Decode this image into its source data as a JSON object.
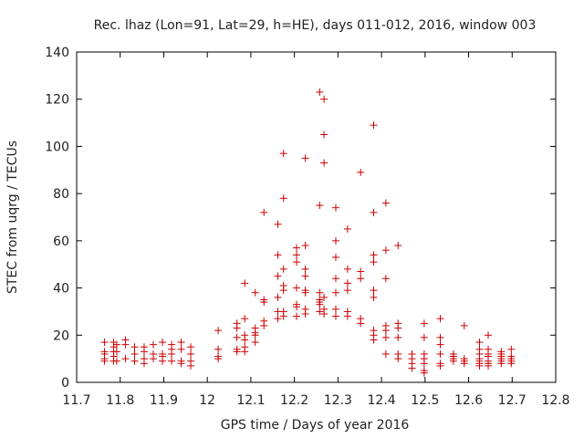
{
  "chart_data": {
    "type": "scatter",
    "title": "Rec. lhaz (Lon=91, Lat=29, h=HE), days 011-012, 2016, window 003",
    "xlabel": "GPS time / Days of year 2016",
    "ylabel": "STEC from uqrg / TECUs",
    "xlim": [
      11.7,
      12.8
    ],
    "ylim": [
      0,
      140
    ],
    "xticks": [
      "11.7",
      "11.8",
      "11.9",
      "12",
      "12.1",
      "12.2",
      "12.3",
      "12.4",
      "12.5",
      "12.6",
      "12.7",
      "12.8"
    ],
    "yticks": [
      "0",
      "20",
      "40",
      "60",
      "80",
      "100",
      "120",
      "140"
    ],
    "grid": false,
    "marker": "+",
    "color": "#cc0000",
    "points": [
      [
        11.764,
        17
      ],
      [
        11.764,
        13
      ],
      [
        11.764,
        12
      ],
      [
        11.764,
        10
      ],
      [
        11.764,
        9
      ],
      [
        11.785,
        17
      ],
      [
        11.785,
        15
      ],
      [
        11.785,
        13
      ],
      [
        11.785,
        11
      ],
      [
        11.785,
        9
      ],
      [
        11.792,
        16
      ],
      [
        11.792,
        13
      ],
      [
        11.792,
        9
      ],
      [
        11.812,
        18
      ],
      [
        11.812,
        16
      ],
      [
        11.812,
        10
      ],
      [
        11.833,
        15
      ],
      [
        11.833,
        12
      ],
      [
        11.833,
        9
      ],
      [
        11.855,
        15
      ],
      [
        11.855,
        13
      ],
      [
        11.855,
        10
      ],
      [
        11.855,
        8
      ],
      [
        11.876,
        16
      ],
      [
        11.876,
        12
      ],
      [
        11.876,
        10
      ],
      [
        11.897,
        17
      ],
      [
        11.897,
        12
      ],
      [
        11.897,
        11
      ],
      [
        11.897,
        9
      ],
      [
        11.918,
        16
      ],
      [
        11.918,
        14
      ],
      [
        11.918,
        12
      ],
      [
        11.918,
        9
      ],
      [
        11.94,
        17
      ],
      [
        11.94,
        14
      ],
      [
        11.94,
        9
      ],
      [
        11.94,
        8
      ],
      [
        11.962,
        15
      ],
      [
        11.962,
        12
      ],
      [
        11.962,
        9
      ],
      [
        11.962,
        7
      ],
      [
        12.025,
        22
      ],
      [
        12.025,
        14
      ],
      [
        12.025,
        11
      ],
      [
        12.025,
        10
      ],
      [
        12.068,
        25
      ],
      [
        12.068,
        23
      ],
      [
        12.068,
        19
      ],
      [
        12.068,
        14
      ],
      [
        12.068,
        13
      ],
      [
        12.086,
        42
      ],
      [
        12.086,
        27
      ],
      [
        12.086,
        20
      ],
      [
        12.086,
        18
      ],
      [
        12.086,
        15
      ],
      [
        12.086,
        13
      ],
      [
        12.11,
        38
      ],
      [
        12.11,
        23
      ],
      [
        12.11,
        21
      ],
      [
        12.11,
        20
      ],
      [
        12.11,
        17
      ],
      [
        12.13,
        72
      ],
      [
        12.13,
        35
      ],
      [
        12.13,
        34
      ],
      [
        12.13,
        26
      ],
      [
        12.13,
        24
      ],
      [
        12.162,
        67
      ],
      [
        12.162,
        54
      ],
      [
        12.162,
        45
      ],
      [
        12.162,
        36
      ],
      [
        12.162,
        30
      ],
      [
        12.162,
        27
      ],
      [
        12.175,
        97
      ],
      [
        12.175,
        78
      ],
      [
        12.175,
        48
      ],
      [
        12.175,
        41
      ],
      [
        12.175,
        39
      ],
      [
        12.175,
        30
      ],
      [
        12.175,
        28
      ],
      [
        12.205,
        57
      ],
      [
        12.205,
        54
      ],
      [
        12.205,
        51
      ],
      [
        12.205,
        40
      ],
      [
        12.205,
        33
      ],
      [
        12.205,
        32
      ],
      [
        12.205,
        28
      ],
      [
        12.225,
        95
      ],
      [
        12.225,
        58
      ],
      [
        12.225,
        48
      ],
      [
        12.225,
        45
      ],
      [
        12.225,
        39
      ],
      [
        12.225,
        38
      ],
      [
        12.225,
        31
      ],
      [
        12.225,
        29
      ],
      [
        12.258,
        123
      ],
      [
        12.258,
        75
      ],
      [
        12.258,
        38
      ],
      [
        12.258,
        35
      ],
      [
        12.258,
        34
      ],
      [
        12.258,
        33
      ],
      [
        12.258,
        30
      ],
      [
        12.268,
        120
      ],
      [
        12.268,
        105
      ],
      [
        12.268,
        93
      ],
      [
        12.268,
        36
      ],
      [
        12.268,
        31
      ],
      [
        12.268,
        29
      ],
      [
        12.295,
        74
      ],
      [
        12.295,
        60
      ],
      [
        12.295,
        53
      ],
      [
        12.295,
        44
      ],
      [
        12.295,
        38
      ],
      [
        12.295,
        31
      ],
      [
        12.295,
        28
      ],
      [
        12.322,
        65
      ],
      [
        12.322,
        48
      ],
      [
        12.322,
        42
      ],
      [
        12.322,
        39
      ],
      [
        12.322,
        30
      ],
      [
        12.322,
        28
      ],
      [
        12.352,
        89
      ],
      [
        12.352,
        47
      ],
      [
        12.352,
        44
      ],
      [
        12.352,
        27
      ],
      [
        12.352,
        25
      ],
      [
        12.382,
        109
      ],
      [
        12.382,
        72
      ],
      [
        12.382,
        54
      ],
      [
        12.382,
        51
      ],
      [
        12.382,
        39
      ],
      [
        12.382,
        36
      ],
      [
        12.382,
        22
      ],
      [
        12.382,
        20
      ],
      [
        12.382,
        18
      ],
      [
        12.41,
        76
      ],
      [
        12.41,
        56
      ],
      [
        12.41,
        44
      ],
      [
        12.41,
        24
      ],
      [
        12.41,
        22
      ],
      [
        12.41,
        19
      ],
      [
        12.41,
        12
      ],
      [
        12.438,
        58
      ],
      [
        12.438,
        25
      ],
      [
        12.438,
        23
      ],
      [
        12.438,
        19
      ],
      [
        12.438,
        12
      ],
      [
        12.438,
        10
      ],
      [
        12.47,
        12
      ],
      [
        12.47,
        10
      ],
      [
        12.47,
        8
      ],
      [
        12.47,
        6
      ],
      [
        12.498,
        25
      ],
      [
        12.498,
        19
      ],
      [
        12.498,
        12
      ],
      [
        12.498,
        10
      ],
      [
        12.498,
        8
      ],
      [
        12.498,
        5
      ],
      [
        12.498,
        4
      ],
      [
        12.535,
        27
      ],
      [
        12.535,
        19
      ],
      [
        12.535,
        16
      ],
      [
        12.535,
        12
      ],
      [
        12.535,
        8
      ],
      [
        12.535,
        7
      ],
      [
        12.565,
        12
      ],
      [
        12.565,
        11
      ],
      [
        12.565,
        10
      ],
      [
        12.565,
        9
      ],
      [
        12.59,
        24
      ],
      [
        12.59,
        10
      ],
      [
        12.59,
        9
      ],
      [
        12.59,
        8
      ],
      [
        12.625,
        17
      ],
      [
        12.625,
        14
      ],
      [
        12.625,
        12
      ],
      [
        12.625,
        10
      ],
      [
        12.625,
        9
      ],
      [
        12.625,
        8
      ],
      [
        12.625,
        7
      ],
      [
        12.645,
        20
      ],
      [
        12.645,
        14
      ],
      [
        12.645,
        12
      ],
      [
        12.645,
        11
      ],
      [
        12.645,
        9
      ],
      [
        12.645,
        8
      ],
      [
        12.645,
        7
      ],
      [
        12.675,
        13
      ],
      [
        12.675,
        12
      ],
      [
        12.675,
        11
      ],
      [
        12.675,
        10
      ],
      [
        12.675,
        9
      ],
      [
        12.675,
        8
      ],
      [
        12.698,
        14
      ],
      [
        12.698,
        11
      ],
      [
        12.698,
        10
      ],
      [
        12.698,
        9
      ],
      [
        12.698,
        8
      ]
    ]
  }
}
